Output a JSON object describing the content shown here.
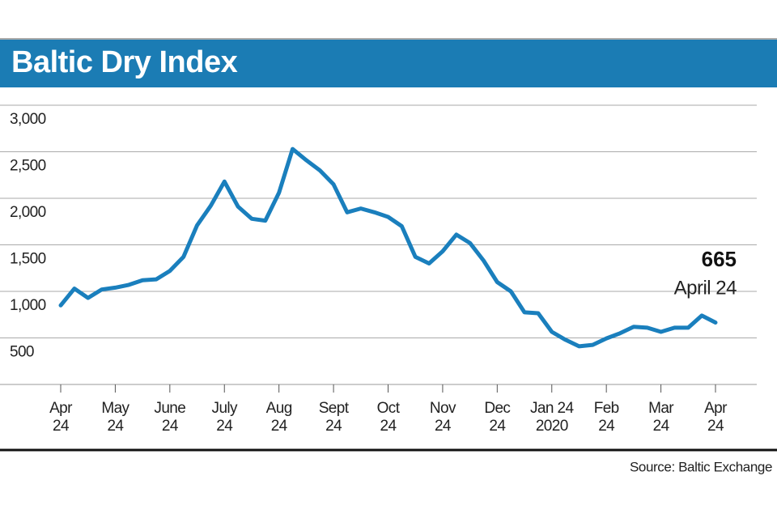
{
  "chart_data": {
    "type": "line",
    "title": "Baltic Dry Index",
    "source": "Source: Baltic Exchange",
    "annotation": "April 24",
    "categories": [
      "Apr\n24",
      null,
      null,
      null,
      "May\n24",
      null,
      null,
      null,
      "June\n24",
      null,
      null,
      null,
      "July\n24",
      null,
      null,
      null,
      "Aug\n24",
      null,
      null,
      null,
      "Sept\n24",
      null,
      null,
      null,
      "Oct\n24",
      null,
      null,
      null,
      "Nov\n24",
      null,
      null,
      null,
      "Dec\n24",
      null,
      null,
      null,
      "Jan 24\n2020",
      null,
      null,
      null,
      "Feb\n24",
      null,
      null,
      null,
      "Mar\n24",
      null,
      null,
      null,
      "Apr\n24"
    ],
    "series": [
      {
        "name": "Baltic Dry Index",
        "color": "#1a7fbd",
        "values": [
          850,
          1030,
          930,
          1020,
          1040,
          1070,
          1120,
          1130,
          1220,
          1370,
          1710,
          1920,
          2180,
          1910,
          1780,
          1760,
          2060,
          2530,
          2410,
          2300,
          2150,
          1850,
          1890,
          1850,
          1800,
          1700,
          1370,
          1300,
          1430,
          1610,
          1520,
          1330,
          1100,
          1000,
          775,
          765,
          565,
          480,
          410,
          425,
          495,
          550,
          620,
          610,
          565,
          610,
          610,
          740,
          665
        ]
      }
    ],
    "ylim": [
      0,
      3000
    ],
    "yticks": [
      {
        "value": 500,
        "label": "500"
      },
      {
        "value": 1000,
        "label": "1,000"
      },
      {
        "value": 1500,
        "label": "1,500"
      },
      {
        "value": 2000,
        "label": "2,000"
      },
      {
        "value": 2500,
        "label": "2,500"
      },
      {
        "value": 3000,
        "label": "3,000"
      }
    ],
    "grid": true
  }
}
